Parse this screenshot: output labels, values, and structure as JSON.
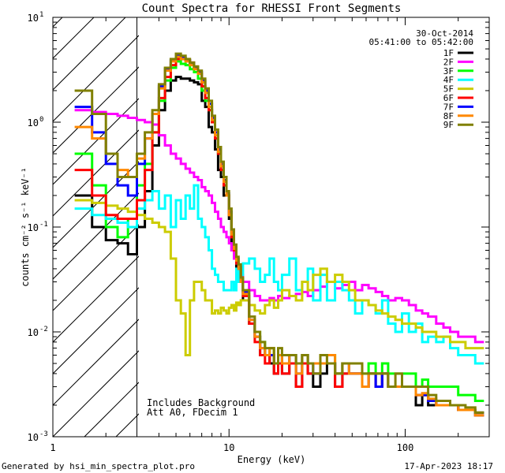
{
  "chart_data": {
    "type": "line",
    "title": "Count Spectra for RHESSI Front Segments",
    "xlabel": "Energy (keV)",
    "ylabel": "counts cm⁻² s⁻¹ keV⁻¹",
    "xscale": "log",
    "yscale": "log",
    "xlim": [
      1,
      300
    ],
    "ylim": [
      0.001,
      10
    ],
    "x_ticks": [
      {
        "value": 1,
        "label": "1"
      },
      {
        "value": 10,
        "label": "10"
      },
      {
        "value": 100,
        "label": "100"
      }
    ],
    "y_ticks": [
      {
        "value": 10,
        "base": "10",
        "exp": "1"
      },
      {
        "value": 1,
        "base": "10",
        "exp": "0"
      },
      {
        "value": 0.1,
        "base": "10",
        "exp": "-1"
      },
      {
        "value": 0.01,
        "base": "10",
        "exp": "-2"
      },
      {
        "value": 0.001,
        "base": "10",
        "exp": "-3"
      }
    ],
    "hatched_region": {
      "x_min": 1,
      "x_max": 3
    },
    "header": {
      "date": "30-Oct-2014",
      "time_range": "05:41:00 to 05:42:00"
    },
    "annotations": [
      "Includes Background",
      "Att A0, FDecim 1"
    ],
    "footer": {
      "generated_by": "Generated by hsi_min_spectra_plot.pro",
      "timestamp": "17-Apr-2023 18:17"
    },
    "energy_edges": [
      1.33,
      1.67,
      2.0,
      2.33,
      2.67,
      3.0,
      3.33,
      3.67,
      4.0,
      4.33,
      4.67,
      5.0,
      5.33,
      5.67,
      6.0,
      6.33,
      6.67,
      7.0,
      7.33,
      7.67,
      8.0,
      8.33,
      8.67,
      9.0,
      9.33,
      9.67,
      10.0,
      10.33,
      10.67,
      11.0,
      11.33,
      11.67,
      12.0,
      13,
      14,
      15,
      16,
      17,
      18,
      19,
      20,
      22,
      24,
      26,
      28,
      30,
      33,
      36,
      40,
      44,
      48,
      52,
      57,
      62,
      68,
      74,
      80,
      88,
      96,
      105,
      115,
      125,
      135,
      150,
      165,
      180,
      200,
      220,
      250,
      280
    ],
    "series": [
      {
        "name": "1F",
        "color": "#000000",
        "values": [
          0.2,
          0.1,
          0.075,
          0.07,
          0.055,
          0.1,
          0.22,
          0.6,
          1.3,
          2.0,
          2.5,
          2.7,
          2.6,
          2.6,
          2.5,
          2.4,
          2.3,
          1.6,
          1.4,
          0.9,
          0.8,
          0.55,
          0.35,
          0.3,
          0.2,
          0.2,
          0.12,
          0.06,
          0.05,
          0.04,
          0.035,
          0.03,
          0.02,
          0.012,
          0.009,
          0.006,
          0.006,
          0.005,
          0.004,
          0.005,
          0.004,
          0.005,
          0.003,
          0.005,
          0.004,
          0.003,
          0.004,
          0.005,
          0.003,
          0.004,
          0.004,
          0.004,
          0.003,
          0.004,
          0.003,
          0.004,
          0.003,
          0.003,
          0.003,
          0.003,
          0.002,
          0.0025,
          0.002,
          0.002,
          0.002,
          0.002,
          0.0018,
          0.0018,
          0.0017
        ]
      },
      {
        "name": "2F",
        "color": "#ff00ff",
        "values": [
          1.3,
          1.25,
          1.2,
          1.15,
          1.1,
          1.05,
          1.0,
          0.95,
          0.75,
          0.6,
          0.5,
          0.45,
          0.4,
          0.36,
          0.33,
          0.3,
          0.28,
          0.24,
          0.22,
          0.2,
          0.17,
          0.14,
          0.12,
          0.1,
          0.09,
          0.08,
          0.07,
          0.06,
          0.05,
          0.045,
          0.04,
          0.035,
          0.03,
          0.025,
          0.022,
          0.02,
          0.02,
          0.021,
          0.02,
          0.022,
          0.021,
          0.022,
          0.023,
          0.024,
          0.022,
          0.025,
          0.027,
          0.03,
          0.026,
          0.028,
          0.03,
          0.025,
          0.028,
          0.026,
          0.024,
          0.022,
          0.02,
          0.021,
          0.02,
          0.018,
          0.016,
          0.015,
          0.014,
          0.012,
          0.011,
          0.01,
          0.009,
          0.009,
          0.008
        ]
      },
      {
        "name": "3F",
        "color": "#00ff00",
        "values": [
          0.5,
          0.25,
          0.1,
          0.08,
          0.12,
          0.25,
          0.4,
          0.8,
          1.6,
          2.5,
          3.3,
          3.8,
          3.6,
          3.5,
          3.2,
          3.0,
          2.6,
          2.0,
          1.6,
          1.3,
          1.0,
          0.7,
          0.5,
          0.35,
          0.25,
          0.2,
          0.13,
          0.08,
          0.06,
          0.045,
          0.04,
          0.03,
          0.022,
          0.012,
          0.01,
          0.008,
          0.006,
          0.007,
          0.005,
          0.006,
          0.005,
          0.006,
          0.005,
          0.006,
          0.005,
          0.005,
          0.006,
          0.006,
          0.004,
          0.005,
          0.005,
          0.005,
          0.004,
          0.005,
          0.004,
          0.005,
          0.004,
          0.004,
          0.004,
          0.004,
          0.003,
          0.0035,
          0.003,
          0.003,
          0.003,
          0.003,
          0.0025,
          0.0025,
          0.0022
        ]
      },
      {
        "name": "4F",
        "color": "#00ffff",
        "values": [
          0.15,
          0.13,
          0.12,
          0.11,
          0.1,
          0.15,
          0.18,
          0.22,
          0.15,
          0.2,
          0.1,
          0.18,
          0.12,
          0.2,
          0.15,
          0.25,
          0.12,
          0.1,
          0.08,
          0.06,
          0.04,
          0.035,
          0.03,
          0.03,
          0.025,
          0.025,
          0.025,
          0.03,
          0.025,
          0.04,
          0.03,
          0.035,
          0.045,
          0.05,
          0.04,
          0.03,
          0.035,
          0.05,
          0.03,
          0.025,
          0.035,
          0.05,
          0.025,
          0.03,
          0.04,
          0.02,
          0.035,
          0.02,
          0.03,
          0.025,
          0.02,
          0.015,
          0.02,
          0.018,
          0.015,
          0.02,
          0.012,
          0.01,
          0.015,
          0.01,
          0.012,
          0.008,
          0.009,
          0.008,
          0.009,
          0.007,
          0.006,
          0.006,
          0.005
        ]
      },
      {
        "name": "5F",
        "color": "#cccc00",
        "values": [
          0.18,
          0.17,
          0.16,
          0.15,
          0.14,
          0.13,
          0.12,
          0.11,
          0.1,
          0.09,
          0.05,
          0.02,
          0.015,
          0.006,
          0.02,
          0.03,
          0.03,
          0.025,
          0.02,
          0.02,
          0.015,
          0.016,
          0.015,
          0.017,
          0.016,
          0.015,
          0.017,
          0.018,
          0.016,
          0.019,
          0.018,
          0.02,
          0.02,
          0.018,
          0.016,
          0.015,
          0.018,
          0.02,
          0.017,
          0.02,
          0.025,
          0.022,
          0.02,
          0.03,
          0.025,
          0.035,
          0.04,
          0.03,
          0.035,
          0.03,
          0.025,
          0.02,
          0.02,
          0.018,
          0.016,
          0.015,
          0.014,
          0.013,
          0.012,
          0.012,
          0.011,
          0.01,
          0.01,
          0.009,
          0.009,
          0.008,
          0.008,
          0.007,
          0.007
        ]
      },
      {
        "name": "6F",
        "color": "#ff0000",
        "values": [
          0.35,
          0.2,
          0.13,
          0.12,
          0.12,
          0.18,
          0.35,
          0.8,
          1.7,
          2.7,
          3.5,
          4.0,
          4.0,
          3.9,
          3.7,
          3.3,
          2.9,
          2.2,
          1.7,
          1.3,
          1.0,
          0.7,
          0.5,
          0.35,
          0.25,
          0.2,
          0.13,
          0.08,
          0.06,
          0.045,
          0.04,
          0.03,
          0.022,
          0.012,
          0.008,
          0.006,
          0.005,
          0.006,
          0.004,
          0.005,
          0.004,
          0.005,
          0.003,
          0.005,
          0.004,
          0.004,
          0.005,
          0.005,
          0.003,
          0.004,
          0.004,
          0.004,
          0.003,
          0.004,
          0.003,
          0.004,
          0.003,
          0.003,
          0.003,
          0.003,
          0.0025,
          0.0025,
          0.0022,
          0.002,
          0.002,
          0.002,
          0.0018,
          0.0018,
          0.0016
        ]
      },
      {
        "name": "7F",
        "color": "#0000ff",
        "values": [
          1.4,
          0.8,
          0.4,
          0.25,
          0.2,
          0.4,
          0.7,
          1.2,
          2.2,
          3.2,
          3.9,
          4.3,
          4.1,
          3.9,
          3.6,
          3.3,
          3.0,
          2.5,
          2.0,
          1.5,
          1.1,
          0.8,
          0.55,
          0.4,
          0.28,
          0.21,
          0.14,
          0.09,
          0.065,
          0.05,
          0.042,
          0.032,
          0.024,
          0.013,
          0.009,
          0.007,
          0.006,
          0.006,
          0.005,
          0.006,
          0.005,
          0.006,
          0.004,
          0.006,
          0.005,
          0.004,
          0.005,
          0.005,
          0.004,
          0.005,
          0.004,
          0.004,
          0.003,
          0.004,
          0.003,
          0.004,
          0.003,
          0.003,
          0.003,
          0.003,
          0.0025,
          0.0025,
          0.0022,
          0.002,
          0.002,
          0.002,
          0.0018,
          0.0018,
          0.0016
        ]
      },
      {
        "name": "8F",
        "color": "#ff8800",
        "values": [
          0.9,
          0.7,
          0.5,
          0.35,
          0.3,
          0.45,
          0.7,
          1.2,
          2.1,
          3.1,
          3.8,
          4.2,
          4.0,
          3.8,
          3.5,
          3.2,
          2.9,
          2.4,
          1.9,
          1.4,
          1.05,
          0.75,
          0.52,
          0.38,
          0.27,
          0.2,
          0.13,
          0.085,
          0.062,
          0.048,
          0.04,
          0.03,
          0.023,
          0.013,
          0.009,
          0.007,
          0.006,
          0.007,
          0.005,
          0.006,
          0.005,
          0.006,
          0.004,
          0.006,
          0.005,
          0.005,
          0.005,
          0.006,
          0.004,
          0.005,
          0.004,
          0.004,
          0.003,
          0.004,
          0.004,
          0.004,
          0.003,
          0.003,
          0.003,
          0.003,
          0.0025,
          0.0026,
          0.0023,
          0.002,
          0.002,
          0.002,
          0.0018,
          0.0018,
          0.0016
        ]
      },
      {
        "name": "9F",
        "color": "#808000",
        "values": [
          2.0,
          1.2,
          0.5,
          0.3,
          0.3,
          0.5,
          0.8,
          1.3,
          2.3,
          3.3,
          4.0,
          4.5,
          4.3,
          4.0,
          3.7,
          3.4,
          3.1,
          2.6,
          2.1,
          1.6,
          1.15,
          0.85,
          0.58,
          0.42,
          0.3,
          0.22,
          0.15,
          0.095,
          0.068,
          0.052,
          0.044,
          0.033,
          0.025,
          0.014,
          0.01,
          0.008,
          0.007,
          0.007,
          0.005,
          0.007,
          0.006,
          0.006,
          0.005,
          0.006,
          0.005,
          0.004,
          0.006,
          0.005,
          0.004,
          0.005,
          0.005,
          0.005,
          0.004,
          0.004,
          0.004,
          0.004,
          0.003,
          0.004,
          0.003,
          0.003,
          0.003,
          0.003,
          0.0025,
          0.0022,
          0.0022,
          0.002,
          0.002,
          0.0019,
          0.0017
        ]
      }
    ]
  }
}
